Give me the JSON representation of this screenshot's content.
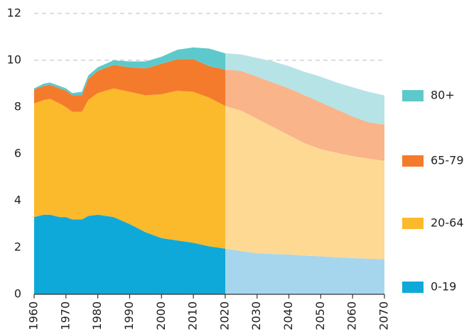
{
  "chart_data": {
    "type": "stacked_area",
    "x": [
      1960,
      1963,
      1965,
      1968,
      1970,
      1972,
      1975,
      1977,
      1980,
      1985,
      1990,
      1995,
      2000,
      2005,
      2010,
      2015,
      2020,
      2025,
      2030,
      2035,
      2040,
      2045,
      2050,
      2055,
      2060,
      2065,
      2070
    ],
    "series": [
      {
        "name": "0-19",
        "color": "#0fa9d9",
        "projection_color": "#a6d6ee",
        "values": [
          3.3,
          3.4,
          3.4,
          3.3,
          3.3,
          3.2,
          3.2,
          3.35,
          3.4,
          3.3,
          3.0,
          2.65,
          2.4,
          2.3,
          2.2,
          2.05,
          1.95,
          1.85,
          1.75,
          1.72,
          1.7,
          1.65,
          1.62,
          1.58,
          1.55,
          1.52,
          1.5
        ]
      },
      {
        "name": "20-64",
        "color": "#fbb92c",
        "projection_color": "#fed993",
        "values": [
          4.85,
          4.9,
          4.95,
          4.85,
          4.7,
          4.6,
          4.6,
          4.95,
          5.2,
          5.5,
          5.65,
          5.85,
          6.15,
          6.4,
          6.45,
          6.35,
          6.1,
          6.0,
          5.75,
          5.43,
          5.1,
          4.8,
          4.58,
          4.47,
          4.35,
          4.28,
          4.2
        ]
      },
      {
        "name": "65-79",
        "color": "#f47b2b",
        "projection_color": "#f9b48a",
        "values": [
          0.6,
          0.6,
          0.6,
          0.65,
          0.7,
          0.7,
          0.7,
          0.9,
          0.95,
          1.0,
          1.05,
          1.15,
          1.3,
          1.35,
          1.4,
          1.35,
          1.55,
          1.7,
          1.8,
          1.9,
          2.0,
          2.05,
          2.0,
          1.85,
          1.7,
          1.55,
          1.55
        ]
      },
      {
        "name": "80+",
        "color": "#5ec9cc",
        "projection_color": "#b6e3e6",
        "values": [
          0.05,
          0.1,
          0.1,
          0.1,
          0.1,
          0.1,
          0.15,
          0.15,
          0.15,
          0.2,
          0.25,
          0.3,
          0.3,
          0.4,
          0.5,
          0.75,
          0.7,
          0.7,
          0.8,
          0.9,
          0.95,
          1.0,
          1.1,
          1.15,
          1.25,
          1.3,
          1.25
        ]
      }
    ],
    "projection_start": 2020,
    "xlim": [
      1960,
      2070
    ],
    "xticks": [
      1960,
      1970,
      1980,
      1990,
      2000,
      2010,
      2020,
      2030,
      2040,
      2050,
      2060,
      2070
    ],
    "ylim": [
      0,
      12
    ],
    "yticks": [
      0,
      2,
      4,
      6,
      8,
      10,
      12
    ],
    "grid": true,
    "legend": "right"
  }
}
